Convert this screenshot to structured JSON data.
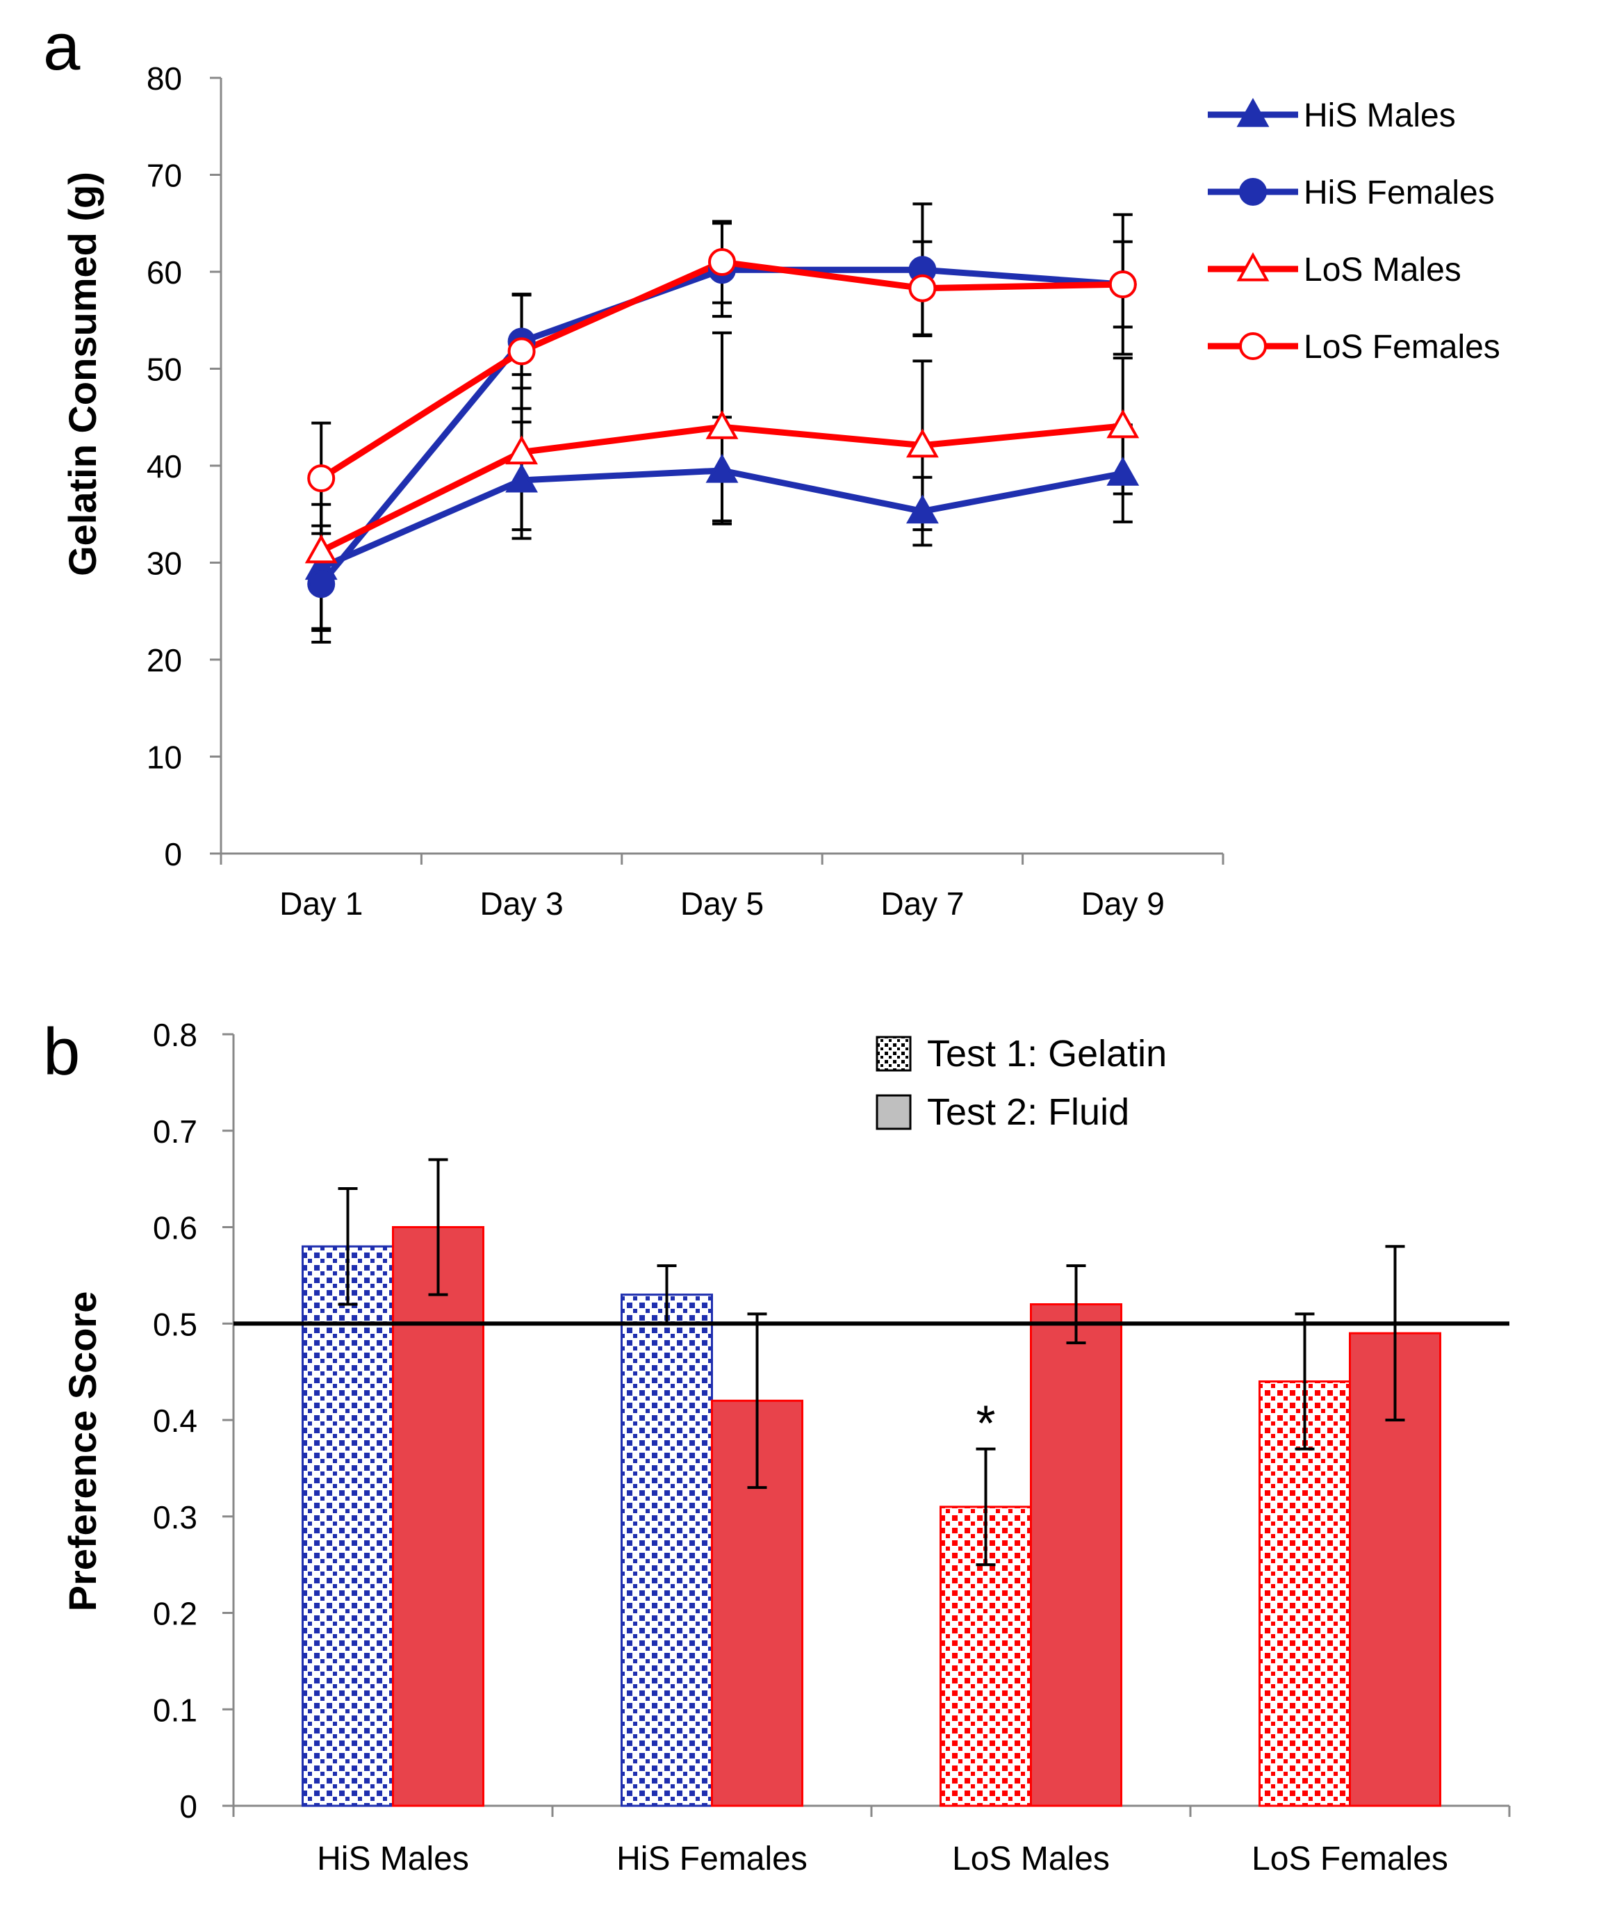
{
  "chart_data": [
    {
      "panel_label": "a",
      "type": "line",
      "title": "",
      "xlabel": "",
      "ylabel": "Gelatin Consumed (g)",
      "categories": [
        "Day 1",
        "Day 3",
        "Day 5",
        "Day 7",
        "Day 9"
      ],
      "ylim": [
        0,
        80
      ],
      "yticks": [
        "0",
        "10",
        "20",
        "30",
        "40",
        "50",
        "60",
        "70",
        "80"
      ],
      "legend_position": "top-right",
      "series": [
        {
          "name": "HiS Males",
          "color": "#1F2FAF",
          "marker": "triangle-filled",
          "values": [
            29.5,
            38.5,
            39.5,
            35.3,
            39.2
          ],
          "errors": [
            6.5,
            6.0,
            5.5,
            3.5,
            5.0
          ]
        },
        {
          "name": "HiS Females",
          "color": "#1F2FAF",
          "marker": "circle-filled",
          "values": [
            27.8,
            52.8,
            60.2,
            60.2,
            58.7
          ],
          "errors": [
            6.0,
            4.8,
            4.8,
            6.8,
            7.2
          ]
        },
        {
          "name": "LoS Males",
          "color": "#FF0000",
          "marker": "triangle-open",
          "values": [
            31.2,
            41.4,
            44.0,
            42.1,
            44.1
          ],
          "errors": [
            8.0,
            8.0,
            9.7,
            8.7,
            7.0
          ]
        },
        {
          "name": "LoS Females",
          "color": "#FF0000",
          "marker": "circle-open",
          "values": [
            38.7,
            51.8,
            61.0,
            58.3,
            58.7
          ],
          "errors": [
            5.7,
            5.9,
            4.2,
            4.8,
            4.4
          ]
        }
      ]
    },
    {
      "panel_label": "b",
      "type": "bar",
      "title": "",
      "xlabel": "",
      "ylabel": "Preference Score",
      "categories": [
        "HiS Males",
        "HiS Females",
        "LoS Males",
        "LoS Females"
      ],
      "ylim": [
        0,
        0.8
      ],
      "yticks": [
        "0",
        "0.1",
        "0.2",
        "0.3",
        "0.4",
        "0.5",
        "0.6",
        "0.7",
        "0.8"
      ],
      "reference_line": 0.5,
      "legend_position": "top-center",
      "series": [
        {
          "name": "Test 1: Gelatin",
          "pattern": "checkered",
          "values": [
            0.58,
            0.53,
            0.31,
            0.44
          ],
          "errors": [
            0.06,
            0.03,
            0.06,
            0.07
          ],
          "colors": [
            "#1F2FAF",
            "#1F2FAF",
            "#FF0000",
            "#FF0000"
          ]
        },
        {
          "name": "Test 2: Fluid",
          "pattern": "solid",
          "values": [
            0.6,
            0.42,
            0.52,
            0.49
          ],
          "errors": [
            0.07,
            0.09,
            0.04,
            0.09
          ],
          "colors": [
            "#E8434B",
            "#E8434B",
            "#E8434B",
            "#E8434B"
          ]
        }
      ],
      "annotations": [
        {
          "text": "*",
          "category": "LoS Males",
          "series": "Test 1: Gelatin"
        }
      ]
    }
  ]
}
